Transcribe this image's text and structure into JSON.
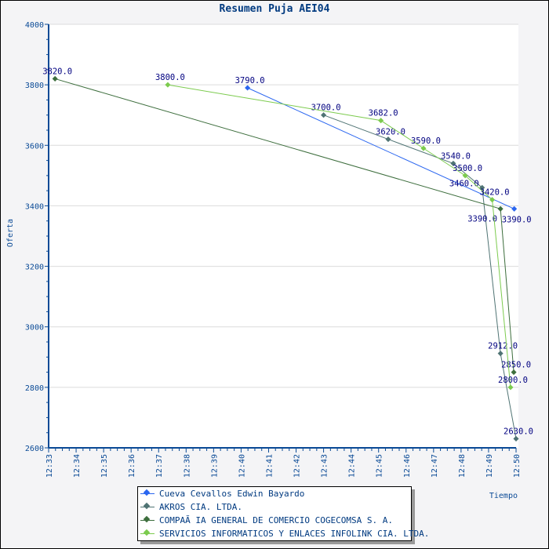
{
  "chart_data": {
    "type": "line",
    "title": "Resumen Puja AEI04",
    "xlabel": "Tiempo",
    "ylabel": "Oferta",
    "ylim": [
      2600,
      4000
    ],
    "yticks": [
      "4000",
      "3800",
      "3600",
      "3400",
      "3200",
      "3000",
      "2800",
      "2600"
    ],
    "xticks": [
      "12:33",
      "12:34",
      "12:35",
      "12:36",
      "12:37",
      "12:38",
      "12:39",
      "12:40",
      "12:41",
      "12:42",
      "12:43",
      "12:44",
      "12:45",
      "12:46",
      "12:47",
      "12:48",
      "12:49",
      "12:50"
    ],
    "visible_xtick_labels": [
      "12:33",
      "12:34",
      "12:35",
      "12:36",
      "12:47",
      "12:48",
      "12:49",
      "12:50"
    ],
    "legend_position": "bottom-center",
    "grid": true,
    "series": [
      {
        "name": "Cueva Cevallos Edwin Bayardo",
        "color": "#2a66f0",
        "points": [
          [
            "12:40:14",
            3790
          ],
          [
            "12:49:56",
            3390
          ]
        ],
        "labels": [
          "3790.0",
          "3390.0"
        ]
      },
      {
        "name": "AKROS CIA. LTDA.",
        "color": "#4f7373",
        "points": [
          [
            "12:43:00",
            3700
          ],
          [
            "12:45:21",
            3620
          ],
          [
            "12:47:43",
            3540
          ],
          [
            "12:48:46",
            3460
          ],
          [
            "12:49:26",
            2912
          ],
          [
            "12:50:00",
            2630
          ]
        ],
        "labels": [
          "3700.0",
          "3620.0",
          "3540.0",
          "3460.0",
          "2912.0",
          "2630.0"
        ]
      },
      {
        "name": "COMPAÃ IA GENERAL DE COMERCIO COGECOMSA S. A.",
        "color": "#3d6e3d",
        "points": [
          [
            "12:33:14",
            3820
          ],
          [
            "12:49:26",
            3390
          ],
          [
            "12:49:55",
            2850
          ]
        ],
        "labels": [
          "3820.0",
          "3390.0",
          "2850.0"
        ]
      },
      {
        "name": "SERVICIOS INFORMATICOS Y ENLACES INFOLINK CIA. LTDA.",
        "color": "#7ccb4e",
        "points": [
          [
            "12:37:20",
            3800
          ],
          [
            "12:45:05",
            3682
          ],
          [
            "12:46:38",
            3590
          ],
          [
            "12:48:09",
            3500
          ],
          [
            "12:49:08",
            3420
          ],
          [
            "12:49:48",
            2800
          ]
        ],
        "labels": [
          "3800.0",
          "3682.0",
          "3590.0",
          "3500.0",
          "3420.0",
          "2800.0"
        ]
      }
    ]
  }
}
